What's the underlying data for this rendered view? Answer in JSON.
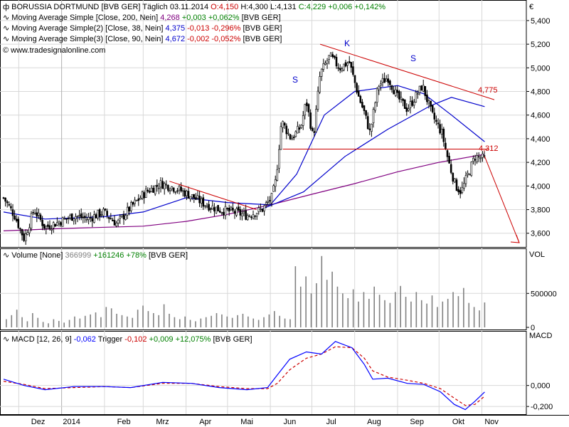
{
  "currency_symbol": "€",
  "price_panel": {
    "header": {
      "name": "BORUSSIA DORTMUND [BVB GER]",
      "interval": "Täglich",
      "date": "03.11.2014",
      "ohlc": [
        "O:4,150",
        "H:4,300",
        "L:4,131",
        "C:4,229"
      ],
      "change": [
        "+0,006",
        "+0,142%"
      ]
    },
    "indicators": [
      {
        "label": "Moving Average Simple [Close, 200, Nein]",
        "value": "4,268",
        "change": "+0,003",
        "pct": "+0,062%",
        "tag": "[BVB GER]"
      },
      {
        "label": "Moving Average Simple(2) [Close, 38, Nein]",
        "value": "4,375",
        "change": "-0,013",
        "pct": "-0,296%",
        "tag": "[BVB GER]"
      },
      {
        "label": "Moving Average Simple(3) [Close, 90, Nein]",
        "value": "4,672",
        "change": "-0,002",
        "pct": "-0,052%",
        "tag": "[BVB GER]"
      }
    ],
    "website": "www.tradesignalonline.com",
    "y_ticks": [
      "5,400",
      "5,200",
      "5,000",
      "4,800",
      "4,600",
      "4,400",
      "4,200",
      "4,000",
      "3,800",
      "3,600"
    ],
    "annotations": {
      "s_left": "S",
      "k_head": "K",
      "s_right": "S",
      "resistance_label": "4,775",
      "neckline_label": "4,312"
    }
  },
  "volume_panel": {
    "header": {
      "label": "Volume [None]",
      "value": "366999",
      "change": "+161246",
      "pct": "+78%",
      "tag": "[BVB GER]"
    },
    "axis_title": "VOL",
    "y_ticks": [
      "500000",
      "0"
    ]
  },
  "macd_panel": {
    "header": {
      "label": "MACD [12, 26, 9]",
      "value": "-0,062",
      "trigger_label": "Trigger",
      "trigger_value": "-0,102",
      "change": "+0,009",
      "pct": "+12,075%",
      "tag": "[BVB GER]"
    },
    "axis_title": "MACD",
    "y_ticks": [
      "0,000",
      "-0,200"
    ]
  },
  "x_axis": {
    "labels": [
      "Dez",
      "2014",
      "Feb",
      "Mrz",
      "Apr",
      "Mai",
      "Jun",
      "Jul",
      "Aug",
      "Sep",
      "Okt",
      "Nov"
    ]
  },
  "colors": {
    "candles": "#000000",
    "ma200": "#800080",
    "ma38": "#0000cc",
    "ma90": "#0000cc",
    "trend_lines": "#cc0000",
    "volume": "#808080",
    "macd": "#0000ff",
    "trigger": "#cc0000",
    "grid": "#d8d8d8",
    "positive": "#008000",
    "negative": "#cc0000"
  },
  "chart_data": {
    "type": "line",
    "price": {
      "anchors": [
        [
          "2013-11-20",
          3.9
        ],
        [
          "2013-11-28",
          3.75
        ],
        [
          "2013-12-05",
          3.55
        ],
        [
          "2013-12-12",
          3.8
        ],
        [
          "2013-12-20",
          3.65
        ],
        [
          "2013-12-31",
          3.7
        ],
        [
          "2014-01-10",
          3.75
        ],
        [
          "2014-01-20",
          3.72
        ],
        [
          "2014-01-31",
          3.78
        ],
        [
          "2014-02-10",
          3.68
        ],
        [
          "2014-02-20",
          3.82
        ],
        [
          "2014-03-03",
          3.95
        ],
        [
          "2014-03-14",
          4.02
        ],
        [
          "2014-03-25",
          3.98
        ],
        [
          "2014-04-04",
          3.92
        ],
        [
          "2014-04-14",
          3.85
        ],
        [
          "2014-04-25",
          3.8
        ],
        [
          "2014-05-05",
          3.78
        ],
        [
          "2014-05-15",
          3.75
        ],
        [
          "2014-05-26",
          3.8
        ],
        [
          "2014-06-02",
          3.9
        ],
        [
          "2014-06-05",
          4.05
        ],
        [
          "2014-06-09",
          4.55
        ],
        [
          "2014-06-16",
          4.4
        ],
        [
          "2014-06-23",
          4.5
        ],
        [
          "2014-06-27",
          4.72
        ],
        [
          "2014-07-02",
          4.4
        ],
        [
          "2014-07-07",
          4.95
        ],
        [
          "2014-07-14",
          5.1
        ],
        [
          "2014-07-21",
          5.0
        ],
        [
          "2014-07-28",
          5.05
        ],
        [
          "2014-08-04",
          4.75
        ],
        [
          "2014-08-08",
          4.62
        ],
        [
          "2014-08-12",
          4.45
        ],
        [
          "2014-08-18",
          4.85
        ],
        [
          "2014-08-25",
          4.92
        ],
        [
          "2014-09-01",
          4.75
        ],
        [
          "2014-09-08",
          4.65
        ],
        [
          "2014-09-12",
          4.72
        ],
        [
          "2014-09-19",
          4.85
        ],
        [
          "2014-09-26",
          4.6
        ],
        [
          "2014-10-03",
          4.45
        ],
        [
          "2014-10-08",
          4.2
        ],
        [
          "2014-10-13",
          4.0
        ],
        [
          "2014-10-17",
          3.95
        ],
        [
          "2014-10-22",
          4.1
        ],
        [
          "2014-10-27",
          4.25
        ],
        [
          "2014-11-03",
          4.23
        ]
      ],
      "ma200": [
        [
          "2013-11-20",
          3.62
        ],
        [
          "2014-01-01",
          3.64
        ],
        [
          "2014-03-01",
          3.66
        ],
        [
          "2014-04-01",
          3.7
        ],
        [
          "2014-05-01",
          3.76
        ],
        [
          "2014-06-01",
          3.84
        ],
        [
          "2014-07-01",
          3.93
        ],
        [
          "2014-08-01",
          4.02
        ],
        [
          "2014-09-01",
          4.12
        ],
        [
          "2014-10-01",
          4.2
        ],
        [
          "2014-11-03",
          4.268
        ]
      ],
      "ma38": [
        [
          "2013-11-20",
          3.78
        ],
        [
          "2013-12-20",
          3.72
        ],
        [
          "2014-02-01",
          3.74
        ],
        [
          "2014-03-01",
          3.78
        ],
        [
          "2014-04-01",
          3.9
        ],
        [
          "2014-05-01",
          3.86
        ],
        [
          "2014-06-01",
          3.84
        ],
        [
          "2014-06-20",
          4.1
        ],
        [
          "2014-07-10",
          4.6
        ],
        [
          "2014-08-01",
          4.8
        ],
        [
          "2014-09-01",
          4.85
        ],
        [
          "2014-09-20",
          4.78
        ],
        [
          "2014-10-10",
          4.6
        ],
        [
          "2014-11-03",
          4.375
        ]
      ],
      "ma90": [
        [
          "2014-05-25",
          3.8
        ],
        [
          "2014-06-25",
          3.95
        ],
        [
          "2014-07-25",
          4.25
        ],
        [
          "2014-08-25",
          4.48
        ],
        [
          "2014-09-25",
          4.68
        ],
        [
          "2014-10-10",
          4.75
        ],
        [
          "2014-11-03",
          4.672
        ]
      ],
      "trend_lines": [
        {
          "from": [
            "2014-03-20",
            4.04
          ],
          "to": [
            "2014-05-22",
            3.8
          ]
        },
        {
          "from": [
            "2014-07-07",
            5.2
          ],
          "to": [
            "2014-11-10",
            4.73
          ]
        },
        {
          "from": [
            "2014-06-10",
            4.312
          ],
          "to": [
            "2014-11-06",
            4.312
          ]
        },
        {
          "from": [
            "2014-11-03",
            4.25
          ],
          "to": [
            "2014-11-28",
            3.52
          ]
        }
      ],
      "ylim": [
        3.49,
        5.55
      ]
    },
    "volume": {
      "values": [
        120000,
        180000,
        260000,
        150000,
        90000,
        210000,
        140000,
        80000,
        60000,
        120000,
        95000,
        70000,
        110000,
        160000,
        130000,
        170000,
        190000,
        220000,
        150000,
        300000,
        280000,
        200000,
        180000,
        160000,
        140000,
        260000,
        320000,
        240000,
        210000,
        180000,
        340000,
        200000,
        150000,
        120000,
        160000,
        110000,
        90000,
        130000,
        150000,
        170000,
        210000,
        190000,
        160000,
        140000,
        180000,
        200000,
        160000,
        130000,
        110000,
        150000,
        190000,
        240000,
        170000,
        130000,
        120000,
        900000,
        600000,
        750000,
        500000,
        650000,
        1050000,
        700000,
        820000,
        600000,
        500000,
        430000,
        560000,
        380000,
        520000,
        420000,
        600000,
        480000,
        400000,
        360000,
        520000,
        610000,
        450000,
        380000,
        520000,
        400000,
        350000,
        470000,
        300000,
        380000,
        420000,
        520000,
        460000,
        580000,
        360000,
        300000,
        250000,
        367000
      ],
      "ylim": [
        0,
        1100000
      ]
    },
    "macd": {
      "macd": [
        [
          "2013-11-20",
          0.06
        ],
        [
          "2013-12-05",
          0.0
        ],
        [
          "2013-12-20",
          -0.04
        ],
        [
          "2014-01-10",
          -0.01
        ],
        [
          "2014-02-01",
          -0.01
        ],
        [
          "2014-02-20",
          -0.02
        ],
        [
          "2014-03-15",
          0.03
        ],
        [
          "2014-04-05",
          0.02
        ],
        [
          "2014-04-25",
          -0.02
        ],
        [
          "2014-05-15",
          -0.04
        ],
        [
          "2014-05-30",
          -0.02
        ],
        [
          "2014-06-06",
          0.1
        ],
        [
          "2014-06-15",
          0.25
        ],
        [
          "2014-06-27",
          0.32
        ],
        [
          "2014-07-08",
          0.3
        ],
        [
          "2014-07-18",
          0.42
        ],
        [
          "2014-07-30",
          0.36
        ],
        [
          "2014-08-08",
          0.2
        ],
        [
          "2014-08-14",
          0.06
        ],
        [
          "2014-08-25",
          0.07
        ],
        [
          "2014-09-08",
          0.02
        ],
        [
          "2014-09-20",
          0.01
        ],
        [
          "2014-10-02",
          -0.06
        ],
        [
          "2014-10-12",
          -0.18
        ],
        [
          "2014-10-20",
          -0.23
        ],
        [
          "2014-10-27",
          -0.15
        ],
        [
          "2014-11-03",
          -0.062
        ]
      ],
      "trigger": [
        [
          "2013-11-20",
          0.04
        ],
        [
          "2013-12-05",
          0.01
        ],
        [
          "2013-12-20",
          -0.03
        ],
        [
          "2014-01-10",
          -0.02
        ],
        [
          "2014-02-01",
          -0.01
        ],
        [
          "2014-02-20",
          -0.02
        ],
        [
          "2014-03-15",
          0.02
        ],
        [
          "2014-04-05",
          0.02
        ],
        [
          "2014-04-25",
          -0.01
        ],
        [
          "2014-05-15",
          -0.03
        ],
        [
          "2014-05-30",
          -0.03
        ],
        [
          "2014-06-06",
          0.02
        ],
        [
          "2014-06-15",
          0.15
        ],
        [
          "2014-06-27",
          0.26
        ],
        [
          "2014-07-08",
          0.3
        ],
        [
          "2014-07-18",
          0.37
        ],
        [
          "2014-07-30",
          0.36
        ],
        [
          "2014-08-08",
          0.26
        ],
        [
          "2014-08-14",
          0.14
        ],
        [
          "2014-08-25",
          0.08
        ],
        [
          "2014-09-08",
          0.05
        ],
        [
          "2014-09-20",
          0.02
        ],
        [
          "2014-10-02",
          -0.03
        ],
        [
          "2014-10-12",
          -0.12
        ],
        [
          "2014-10-20",
          -0.19
        ],
        [
          "2014-10-27",
          -0.18
        ],
        [
          "2014-11-03",
          -0.102
        ]
      ],
      "ylim": [
        -0.26,
        0.5
      ]
    }
  }
}
